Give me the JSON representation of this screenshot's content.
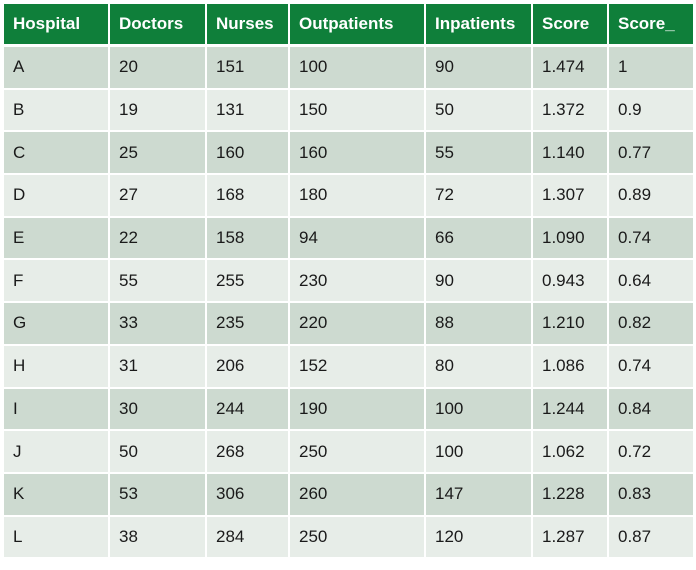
{
  "table": {
    "headers": [
      "Hospital",
      "Doctors",
      "Nurses",
      "Outpatients",
      "Inpatients",
      "Score",
      "Score_"
    ],
    "rows": [
      [
        "A",
        "20",
        "151",
        "100",
        "90",
        "1.474",
        "1"
      ],
      [
        "B",
        "19",
        "131",
        "150",
        "50",
        "1.372",
        "0.9"
      ],
      [
        "C",
        "25",
        "160",
        "160",
        "55",
        "1.140",
        "0.77"
      ],
      [
        "D",
        "27",
        "168",
        "180",
        "72",
        "1.307",
        "0.89"
      ],
      [
        "E",
        "22",
        "158",
        "94",
        "66",
        "1.090",
        "0.74"
      ],
      [
        "F",
        "55",
        "255",
        "230",
        "90",
        "0.943",
        "0.64"
      ],
      [
        "G",
        "33",
        "235",
        "220",
        "88",
        "1.210",
        "0.82"
      ],
      [
        "H",
        "31",
        "206",
        "152",
        "80",
        "1.086",
        "0.74"
      ],
      [
        "I",
        "30",
        "244",
        "190",
        "100",
        "1.244",
        "0.84"
      ],
      [
        "J",
        "50",
        "268",
        "250",
        "100",
        "1.062",
        "0.72"
      ],
      [
        "K",
        "53",
        "306",
        "260",
        "147",
        "1.228",
        "0.83"
      ],
      [
        "L",
        "38",
        "284",
        "250",
        "120",
        "1.287",
        "0.87"
      ]
    ]
  },
  "colors": {
    "header_bg": "#0f7f3a",
    "header_text": "#ffffff",
    "row_odd_bg": "#cddad0",
    "row_even_bg": "#e7ede8"
  }
}
